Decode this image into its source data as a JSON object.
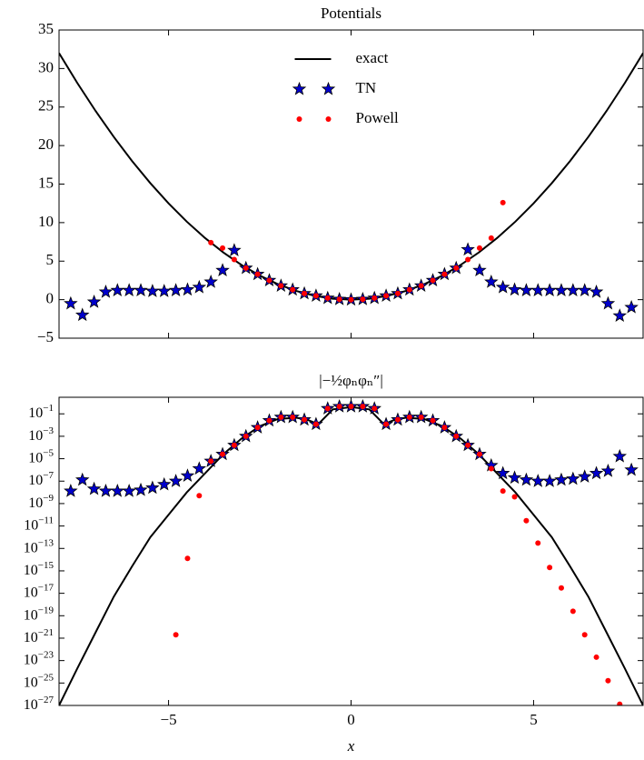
{
  "chart_data": [
    {
      "type": "line",
      "title": "Potentials",
      "xlim": [
        -8,
        8
      ],
      "xticks": [
        -5,
        0,
        5
      ],
      "xtick_labels": false,
      "ylim": [
        -5,
        35
      ],
      "yticks": [
        {
          "value": -5,
          "label": "−5"
        },
        0,
        5,
        10,
        15,
        20,
        25,
        30,
        35
      ],
      "log": false,
      "legend": "upper center",
      "series": [
        {
          "name": "exact",
          "style": "line",
          "color": "#000000",
          "x": [
            -8,
            -7.5,
            -7,
            -6.5,
            -6,
            -5.5,
            -5,
            -4.5,
            -4,
            -3.5,
            -3,
            -2.5,
            -2,
            -1.5,
            -1,
            -0.5,
            0,
            0.5,
            1,
            1.5,
            2,
            2.5,
            3,
            3.5,
            4,
            4.5,
            5,
            5.5,
            6,
            6.5,
            7,
            7.5,
            8
          ],
          "values": [
            32,
            28.125,
            24.5,
            21.125,
            18,
            15.125,
            12.5,
            10.125,
            8,
            6.125,
            4.5,
            3.125,
            2,
            1.125,
            0.5,
            0.125,
            0,
            0.125,
            0.5,
            1.125,
            2,
            3.125,
            4.5,
            6.125,
            8,
            10.125,
            12.5,
            15.125,
            18,
            21.125,
            24.5,
            28.125,
            32
          ]
        },
        {
          "name": "TN",
          "style": "star",
          "color": "#0000cc",
          "x": [
            -7.68,
            -7.36,
            -7.04,
            -6.72,
            -6.4,
            -6.08,
            -5.76,
            -5.44,
            -5.12,
            -4.8,
            -4.48,
            -4.16,
            -3.84,
            -3.52,
            -3.2,
            -2.88,
            -2.56,
            -2.24,
            -1.92,
            -1.6,
            -1.28,
            -0.96,
            -0.64,
            -0.32,
            0,
            0.32,
            0.64,
            0.96,
            1.28,
            1.6,
            1.92,
            2.24,
            2.56,
            2.88,
            3.2,
            3.52,
            3.84,
            4.16,
            4.48,
            4.8,
            5.12,
            5.44,
            5.76,
            6.08,
            6.4,
            6.72,
            7.04,
            7.36,
            7.68
          ],
          "values": [
            -0.5,
            -2.0,
            -0.3,
            1.0,
            1.2,
            1.2,
            1.2,
            1.1,
            1.1,
            1.2,
            1.3,
            1.6,
            2.3,
            3.8,
            6.4,
            4.1,
            3.3,
            2.5,
            1.8,
            1.3,
            0.8,
            0.5,
            0.2,
            0.05,
            0,
            0.05,
            0.2,
            0.5,
            0.8,
            1.3,
            1.8,
            2.5,
            3.3,
            4.1,
            6.5,
            3.8,
            2.3,
            1.6,
            1.3,
            1.2,
            1.2,
            1.2,
            1.2,
            1.2,
            1.2,
            1.0,
            -0.5,
            -2.1,
            -1.0
          ]
        },
        {
          "name": "Powell",
          "style": "dot",
          "color": "#ff0000",
          "x": [
            -3.84,
            -3.52,
            -3.2,
            -2.88,
            -2.56,
            -2.24,
            -1.92,
            -1.6,
            -1.28,
            -0.96,
            -0.64,
            -0.32,
            0,
            0.32,
            0.64,
            0.96,
            1.28,
            1.6,
            1.92,
            2.24,
            2.56,
            2.88,
            3.2,
            3.52,
            3.84,
            4.16
          ],
          "values": [
            7.4,
            6.7,
            5.2,
            4.1,
            3.3,
            2.5,
            1.8,
            1.3,
            0.8,
            0.5,
            0.2,
            0.05,
            0,
            0.05,
            0.2,
            0.5,
            0.8,
            1.3,
            1.8,
            2.5,
            3.3,
            4.1,
            5.2,
            6.7,
            8.0,
            12.6
          ]
        }
      ]
    },
    {
      "type": "line",
      "title": "|−½φₙφₙ″|",
      "xlabel": "x",
      "xlim": [
        -8,
        8
      ],
      "xticks": [
        {
          "value": -5,
          "label": "−5"
        },
        0,
        5
      ],
      "xtick_labels": true,
      "ylim": [
        1e-27,
        3
      ],
      "log": true,
      "yticks": [
        {
          "value": 0.1,
          "label": "10−1"
        },
        {
          "value": 0.001,
          "label": "10−3"
        },
        {
          "value": 1e-05,
          "label": "10−5"
        },
        {
          "value": 1e-07,
          "label": "10−7"
        },
        {
          "value": 1e-09,
          "label": "10−9"
        },
        {
          "value": 1e-11,
          "label": "10−11"
        },
        {
          "value": 1e-13,
          "label": "10−13"
        },
        {
          "value": 1e-15,
          "label": "10−15"
        },
        {
          "value": 1e-17,
          "label": "10−17"
        },
        {
          "value": 1e-19,
          "label": "10−19"
        },
        {
          "value": 1e-21,
          "label": "10−21"
        },
        {
          "value": 1e-23,
          "label": "10−23"
        },
        {
          "value": 1e-25,
          "label": "10−25"
        },
        {
          "value": 1e-27,
          "label": "10−27"
        }
      ],
      "series": [
        {
          "name": "exact",
          "style": "line",
          "color": "#000000",
          "x": [
            -8,
            -7.5,
            -7,
            -6.5,
            -6,
            -5.5,
            -5,
            -4.5,
            -4,
            -3.5,
            -3,
            -2.5,
            -2,
            -1.5,
            -1.2,
            -0.9,
            -0.5,
            0,
            0.5,
            0.9,
            1.2,
            1.5,
            2,
            2.5,
            3,
            3.5,
            4,
            4.5,
            5,
            5.5,
            6,
            6.5,
            7,
            7.5,
            8
          ],
          "values": [
            1e-27,
            2e-24,
            3.2e-21,
            5e-18,
            2.5e-15,
            1e-12,
            1e-10,
            1e-08,
            5e-07,
            2.5e-05,
            0.00063,
            0.008,
            0.035,
            0.045,
            0.03,
            0.012,
            0.25,
            0.4,
            0.25,
            0.012,
            0.03,
            0.045,
            0.035,
            0.008,
            0.00063,
            2.5e-05,
            5e-07,
            1e-08,
            1e-10,
            1e-12,
            2.5e-15,
            5e-18,
            3.2e-21,
            2e-24,
            1e-27
          ]
        },
        {
          "name": "TN",
          "style": "star",
          "color": "#0000cc",
          "x": [
            -7.68,
            -7.36,
            -7.04,
            -6.72,
            -6.4,
            -6.08,
            -5.76,
            -5.44,
            -5.12,
            -4.8,
            -4.48,
            -4.16,
            -3.84,
            -3.52,
            -3.2,
            -2.88,
            -2.56,
            -2.24,
            -1.92,
            -1.6,
            -1.28,
            -0.96,
            -0.64,
            -0.32,
            0,
            0.32,
            0.64,
            0.96,
            1.28,
            1.6,
            1.92,
            2.24,
            2.56,
            2.88,
            3.2,
            3.52,
            3.84,
            4.16,
            4.48,
            4.8,
            5.12,
            5.44,
            5.76,
            6.08,
            6.4,
            6.72,
            7.04,
            7.36,
            7.68
          ],
          "values": [
            1.3e-08,
            1.3e-07,
            2e-08,
            1.3e-08,
            1.3e-08,
            1.3e-08,
            1.6e-08,
            2.5e-08,
            5e-08,
            1e-07,
            3e-07,
            1.3e-06,
            6e-06,
            2.5e-05,
            0.00016,
            0.001,
            0.006,
            0.025,
            0.05,
            0.05,
            0.03,
            0.012,
            0.3,
            0.45,
            0.45,
            0.45,
            0.3,
            0.012,
            0.03,
            0.05,
            0.05,
            0.025,
            0.006,
            0.001,
            0.00016,
            2.5e-05,
            2.5e-06,
            5e-07,
            2e-07,
            1.3e-07,
            1e-07,
            1e-07,
            1.3e-07,
            1.6e-07,
            2.5e-07,
            5e-07,
            8e-07,
            1.6e-05,
            1e-06
          ]
        },
        {
          "name": "Powell",
          "style": "dot",
          "color": "#ff0000",
          "x": [
            -4.8,
            -4.48,
            -4.16,
            -3.84,
            -3.52,
            -3.2,
            -2.88,
            -2.56,
            -2.24,
            -1.92,
            -1.6,
            -1.28,
            -0.96,
            -0.64,
            -0.32,
            0,
            0.32,
            0.64,
            0.96,
            1.28,
            1.6,
            1.92,
            2.24,
            2.56,
            2.88,
            3.2,
            3.52,
            3.84,
            4.16,
            4.48,
            4.8,
            5.12,
            5.44,
            5.76,
            6.08,
            6.4,
            6.72,
            7.04,
            7.36
          ],
          "values": [
            2e-21,
            1.3e-14,
            5e-09,
            6e-06,
            2.5e-05,
            0.00016,
            0.001,
            0.006,
            0.025,
            0.05,
            0.05,
            0.03,
            0.012,
            0.3,
            0.45,
            0.45,
            0.45,
            0.3,
            0.012,
            0.03,
            0.05,
            0.05,
            0.025,
            0.006,
            0.001,
            0.00016,
            2.5e-05,
            1.3e-06,
            1.3e-08,
            4e-09,
            3e-11,
            3e-13,
            2e-15,
            3e-17,
            2.5e-19,
            2e-21,
            2e-23,
            1.6e-25,
            1.3e-27
          ]
        }
      ]
    }
  ]
}
